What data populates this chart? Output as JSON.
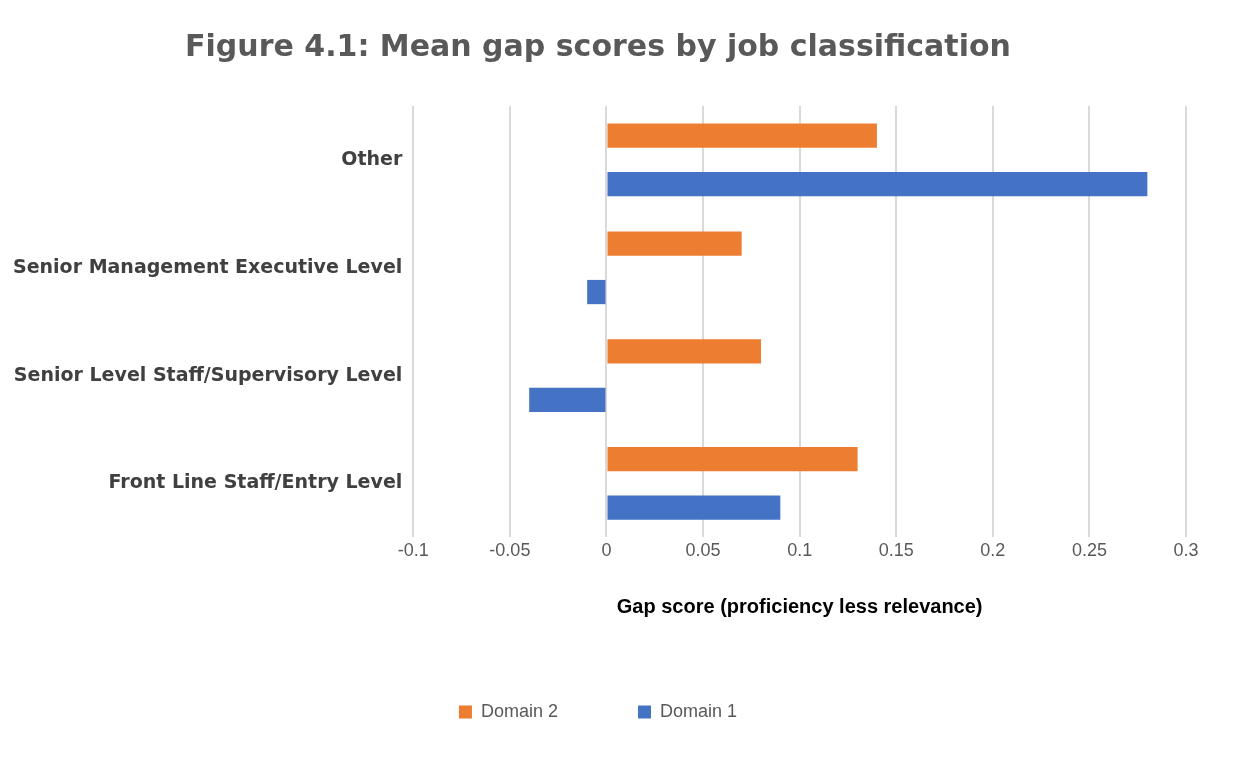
{
  "chart_data": {
    "type": "bar",
    "orientation": "horizontal",
    "title": "Figure 4.1: Mean gap scores by job classification",
    "xlabel": "Gap score (proficiency less relevance)",
    "categories": [
      "Other",
      "Senior Management Executive Level",
      "Senior Level Staff/Supervisory Level",
      "Front Line Staff/Entry Level"
    ],
    "series": [
      {
        "name": "Domain 2",
        "color": "#ed7d31",
        "values": [
          0.14,
          0.07,
          0.08,
          0.13
        ]
      },
      {
        "name": "Domain 1",
        "color": "#4472c4",
        "values": [
          0.28,
          -0.01,
          -0.04,
          0.09
        ]
      }
    ],
    "xlim": [
      -0.1,
      0.3
    ],
    "xticks": [
      -0.1,
      -0.05,
      0,
      0.05,
      0.1,
      0.15,
      0.2,
      0.25,
      0.3
    ],
    "grid": "x",
    "legend": "bottom"
  }
}
